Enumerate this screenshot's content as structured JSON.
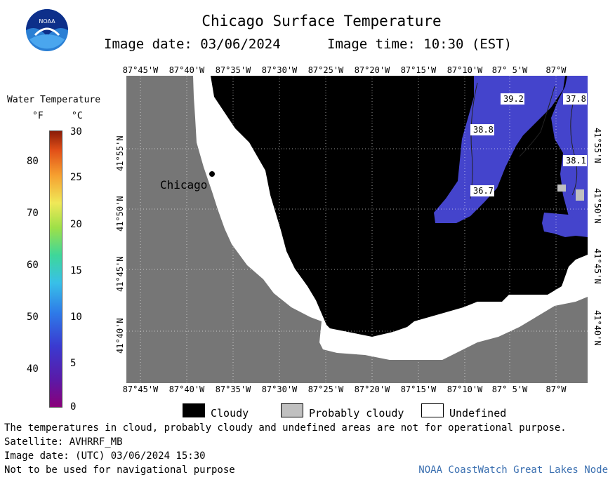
{
  "title": "Chicago Surface Temperature",
  "image_date": "Image date: 03/06/2024",
  "image_time": "Image time: 10:30 (EST)",
  "logo": {
    "text": "NOAA",
    "icon": "noaa-logo-icon"
  },
  "colorbar": {
    "title": "Water Temperature",
    "unit_f": "°F",
    "unit_c": "°C",
    "f_ticks": [
      "80",
      "70",
      "60",
      "50",
      "40"
    ],
    "c_ticks": [
      "30",
      "25",
      "20",
      "15",
      "10",
      "5",
      "0"
    ]
  },
  "lon_labels": [
    "87°45'W",
    "87°40'W",
    "87°35'W",
    "87°30'W",
    "87°25'W",
    "87°20'W",
    "87°15'W",
    "87°10'W",
    "87° 5'W",
    "87°W"
  ],
  "lat_labels": [
    "41°55'N",
    "41°50'N",
    "41°45'N",
    "41°40'N"
  ],
  "city_label": "Chicago",
  "temperature_labels": [
    "39.2",
    "37.8",
    "38.8",
    "38.1",
    "36.7"
  ],
  "legend": {
    "cloudy": "Cloudy",
    "probably_cloudy": "Probably cloudy",
    "undefined": "Undefined",
    "colors": {
      "cloudy": "#000000",
      "probably_cloudy": "#c0c0c0",
      "undefined": "#ffffff",
      "land": "#767676",
      "water": "#4444cc"
    }
  },
  "notes": {
    "disclaimer": "The temperatures in cloud, probably cloudy and undefined areas are not for operational purpose.",
    "satellite": "Satellite: AVHRRF_MB",
    "utc_date": "Image date: (UTC) 03/06/2024  15:30",
    "navigation": "Not to be used for navigational purpose",
    "source": "NOAA CoastWatch Great Lakes Node"
  }
}
